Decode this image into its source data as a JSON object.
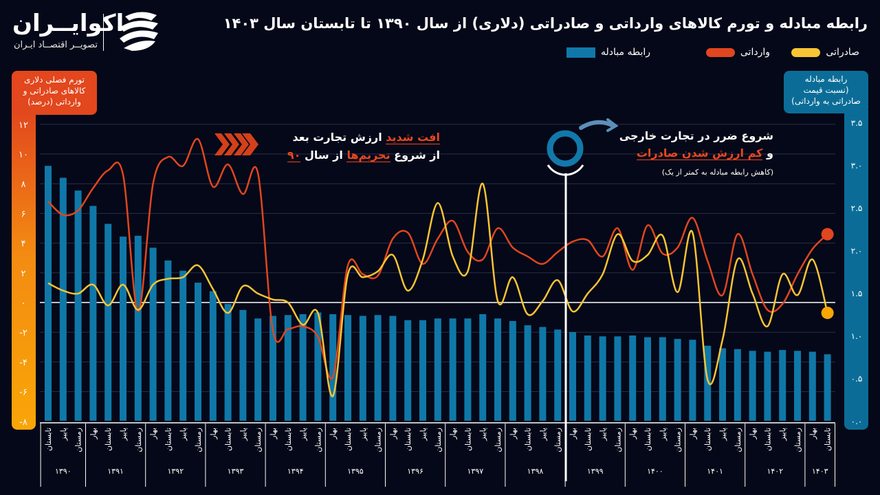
{
  "header": {
    "title": "رابطه مبادله و تورم کالاهای وارداتی و صادراتی (دلاری) از سال ۱۳۹۰ تا تابستان سال ۱۴۰۳"
  },
  "logo": {
    "name": "اکوایــران",
    "tagline": "تصویــر اقتصــاد ایـران"
  },
  "legend": {
    "exports": "صادراتی",
    "imports": "وارداتی",
    "ratio": "رابطه مبادله"
  },
  "left_axis_box": {
    "line1": "تورم فصلی دلاری",
    "line2": "کالاهای صادراتی و",
    "line3": "وارداتی (درصد)"
  },
  "right_axis_box": {
    "line1": "رابطه مبادله",
    "line2": "(نسبت قیمت",
    "line3": "صادراتی به وارداتی)"
  },
  "annotation_sanctions": {
    "line1_highlight": "افت شدید",
    "line1_rest": "ارزش تجارت بعد",
    "line2_a": "از شروع",
    "line2_highlight": "تحریم‌ها",
    "line2_b": "از سال",
    "line2_year": "۹۰"
  },
  "annotation_loss": {
    "line1": "شروع ضرر در تجارت خارجی",
    "line2_a": "و",
    "line2_highlight": "کم ارزش شدن صادرات",
    "line3": "(کاهش رابطه مبادله به کمتر از یک)"
  },
  "colors": {
    "background": "#050818",
    "exports": "#f7c534",
    "imports": "#e0461f",
    "ratio": "#0f78a8",
    "exports_dot": "#f9a607"
  },
  "chart_data": {
    "type": "bar+line",
    "title": "رابطه مبادله و تورم کالاهای وارداتی و صادراتی (دلاری) از سال ۱۳۹۰ تا تابستان سال ۱۴۰۳",
    "ylabel": "تورم فصلی دلاری کالاهای صادراتی و وارداتی (درصد)",
    "y2label": "رابطه مبادله (نسبت قیمت صادراتی به وارداتی)",
    "ylim": [
      -8,
      12
    ],
    "y2lim": [
      0,
      3.5
    ],
    "grid": true,
    "legend_position": "top",
    "y_ticks": [
      {
        "value": 12,
        "label": "۱۲"
      },
      {
        "value": 10,
        "label": "۱۰"
      },
      {
        "value": 8,
        "label": "۸"
      },
      {
        "value": 6,
        "label": "۶"
      },
      {
        "value": 4,
        "label": "۴"
      },
      {
        "value": 2,
        "label": "۲"
      },
      {
        "value": 0,
        "label": "۰"
      },
      {
        "value": -2,
        "label": "-۲"
      },
      {
        "value": -4,
        "label": "-۴"
      },
      {
        "value": -6,
        "label": "-۶"
      },
      {
        "value": -8,
        "label": "-۸"
      }
    ],
    "y2_ticks": [
      {
        "value": 3.5,
        "label": "۳.۵"
      },
      {
        "value": 3.0,
        "label": "۳.۰"
      },
      {
        "value": 2.5,
        "label": "۲.۵"
      },
      {
        "value": 2.0,
        "label": "۲.۰"
      },
      {
        "value": 1.5,
        "label": "۱.۵"
      },
      {
        "value": 1.0,
        "label": "۱.۰"
      },
      {
        "value": 0.5,
        "label": "۰.۵"
      },
      {
        "value": 0.0,
        "label": "۰.۰"
      }
    ],
    "year_groups": [
      {
        "year": "۱۳۹۰",
        "quarters": [
          "تابستان",
          "پاییز",
          "زمستان"
        ]
      },
      {
        "year": "۱۳۹۱",
        "quarters": [
          "بهار",
          "تابستان",
          "پاییز",
          "زمستان"
        ]
      },
      {
        "year": "۱۳۹۲",
        "quarters": [
          "بهار",
          "تابستان",
          "پاییز",
          "زمستان"
        ]
      },
      {
        "year": "۱۳۹۳",
        "quarters": [
          "بهار",
          "تابستان",
          "پاییز",
          "زمستان"
        ]
      },
      {
        "year": "۱۳۹۴",
        "quarters": [
          "بهار",
          "تابستان",
          "پاییز",
          "زمستان"
        ]
      },
      {
        "year": "۱۳۹۵",
        "quarters": [
          "بهار",
          "تابستان",
          "پاییز",
          "زمستان"
        ]
      },
      {
        "year": "۱۳۹۶",
        "quarters": [
          "بهار",
          "تابستان",
          "پاییز",
          "زمستان"
        ]
      },
      {
        "year": "۱۳۹۷",
        "quarters": [
          "بهار",
          "تابستان",
          "پاییز",
          "زمستان"
        ]
      },
      {
        "year": "۱۳۹۸",
        "quarters": [
          "بهار",
          "تابستان",
          "پاییز",
          "زمستان"
        ]
      },
      {
        "year": "۱۳۹۹",
        "quarters": [
          "بهار",
          "تابستان",
          "پاییز",
          "زمستان"
        ]
      },
      {
        "year": "۱۴۰۰",
        "quarters": [
          "بهار",
          "تابستان",
          "پاییز",
          "زمستان"
        ]
      },
      {
        "year": "۱۴۰۱",
        "quarters": [
          "بهار",
          "تابستان",
          "پاییز",
          "زمستان"
        ]
      },
      {
        "year": "۱۴۰۲",
        "quarters": [
          "بهار",
          "تابستان",
          "پاییز",
          "زمستان"
        ]
      },
      {
        "year": "۱۴۰۳",
        "quarters": [
          "بهار",
          "تابستان"
        ]
      }
    ],
    "series": [
      {
        "name": "رابطه مبادله",
        "type": "bar",
        "axis": "right",
        "values": [
          2.99,
          2.85,
          2.7,
          2.52,
          2.31,
          2.16,
          2.17,
          2.03,
          1.88,
          1.76,
          1.62,
          1.52,
          1.37,
          1.3,
          1.2,
          1.23,
          1.24,
          1.25,
          1.27,
          1.25,
          1.24,
          1.23,
          1.24,
          1.23,
          1.18,
          1.18,
          1.2,
          1.2,
          1.2,
          1.25,
          1.2,
          1.17,
          1.12,
          1.1,
          1.07,
          1.04,
          1.0,
          0.99,
          0.99,
          1.0,
          0.98,
          0.98,
          0.96,
          0.95,
          0.88,
          0.85,
          0.84,
          0.82,
          0.81,
          0.83,
          0.82,
          0.81,
          0.78
        ]
      },
      {
        "name": "وارداتی",
        "type": "line",
        "axis": "left",
        "values": [
          6.8,
          5.9,
          6.2,
          7.7,
          8.9,
          8.6,
          -0.6,
          8.0,
          9.8,
          9.2,
          11.0,
          7.8,
          9.3,
          7.3,
          8.7,
          -1.9,
          -1.8,
          -1.6,
          -2.3,
          -5.0,
          2.5,
          1.9,
          1.8,
          4.3,
          4.7,
          2.6,
          4.3,
          5.5,
          3.4,
          2.9,
          5.0,
          3.7,
          3.1,
          2.6,
          3.4,
          4.1,
          4.2,
          3.1,
          5.0,
          2.2,
          5.2,
          3.3,
          3.7,
          5.7,
          2.8,
          0.5,
          4.6,
          1.9,
          -0.5,
          -0.1,
          1.9,
          3.6,
          4.6
        ]
      },
      {
        "name": "صادراتی",
        "type": "line",
        "axis": "left",
        "values": [
          1.3,
          0.8,
          0.6,
          1.2,
          -0.2,
          1.2,
          -0.5,
          1.2,
          1.6,
          1.7,
          2.5,
          0.9,
          -0.7,
          1.1,
          0.6,
          0.2,
          0.0,
          -1.5,
          -0.7,
          -6.3,
          1.9,
          1.7,
          2.1,
          3.2,
          0.8,
          2.9,
          6.7,
          3.1,
          2.1,
          8.0,
          0.1,
          1.7,
          -0.8,
          0.1,
          1.5,
          -0.6,
          0.6,
          1.9,
          4.6,
          2.8,
          3.2,
          4.5,
          0.7,
          4.7,
          -5.2,
          -2.5,
          2.9,
          0.6,
          -1.6,
          1.9,
          0.5,
          2.9,
          -0.7
        ]
      }
    ]
  }
}
